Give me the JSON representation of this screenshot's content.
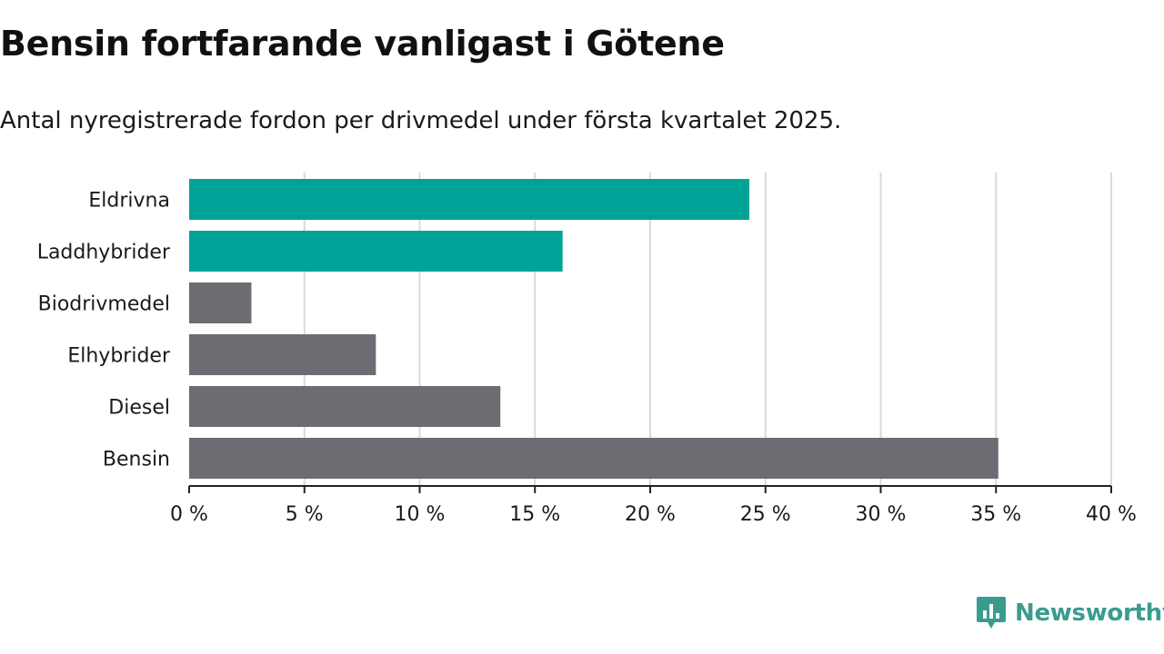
{
  "title": "Bensin fortfarande vanligast i Götene",
  "subtitle": "Antal nyregistrerade fordon per drivmedel under första kvartalet 2025.",
  "logo_text": "Newsworthy",
  "colors": {
    "highlight": "#00a398",
    "default": "#6d6c72",
    "grid": "#d9d9d9",
    "axis": "#222222"
  },
  "chart_data": {
    "type": "bar",
    "orientation": "horizontal",
    "categories": [
      "Eldrivna",
      "Laddhybrider",
      "Biodrivmedel",
      "Elhybrider",
      "Diesel",
      "Bensin"
    ],
    "values": [
      24.3,
      16.2,
      2.7,
      8.1,
      13.5,
      35.1
    ],
    "highlighted": [
      true,
      true,
      false,
      false,
      false,
      false
    ],
    "xlim": [
      0,
      40
    ],
    "xticks": [
      0,
      5,
      10,
      15,
      20,
      25,
      30,
      35,
      40
    ],
    "xtick_labels": [
      "0 %",
      "5 %",
      "10 %",
      "15 %",
      "20 %",
      "25 %",
      "30 %",
      "35 %",
      "40 %"
    ],
    "grid": true
  }
}
